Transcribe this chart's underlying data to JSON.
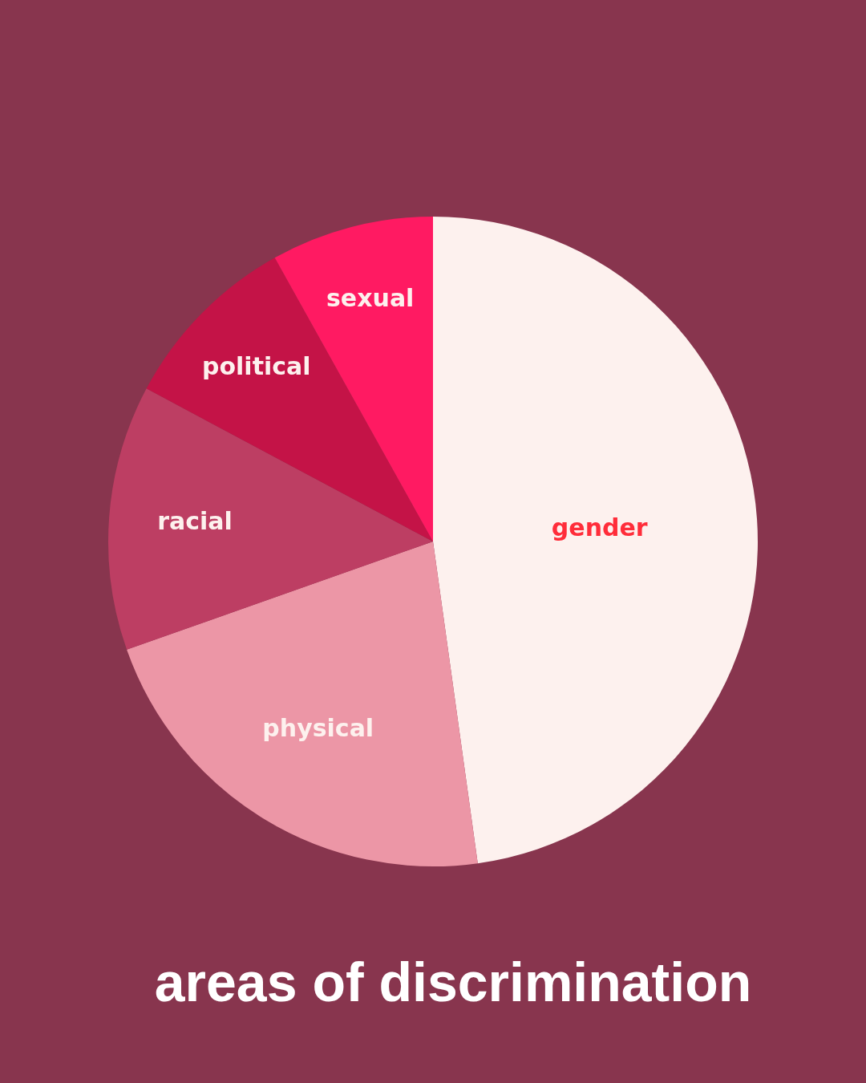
{
  "chart_data": {
    "type": "pie",
    "title": "areas of discrimination",
    "categories": [
      "gender",
      "physical",
      "racial",
      "political",
      "sexual"
    ],
    "values": [
      47.8,
      21.8,
      13.2,
      9.1,
      8.1
    ],
    "colors": [
      "#fdf1ee",
      "#ec96a6",
      "#bd3e63",
      "#c41347",
      "#ff1a62"
    ],
    "legend": false
  }
}
